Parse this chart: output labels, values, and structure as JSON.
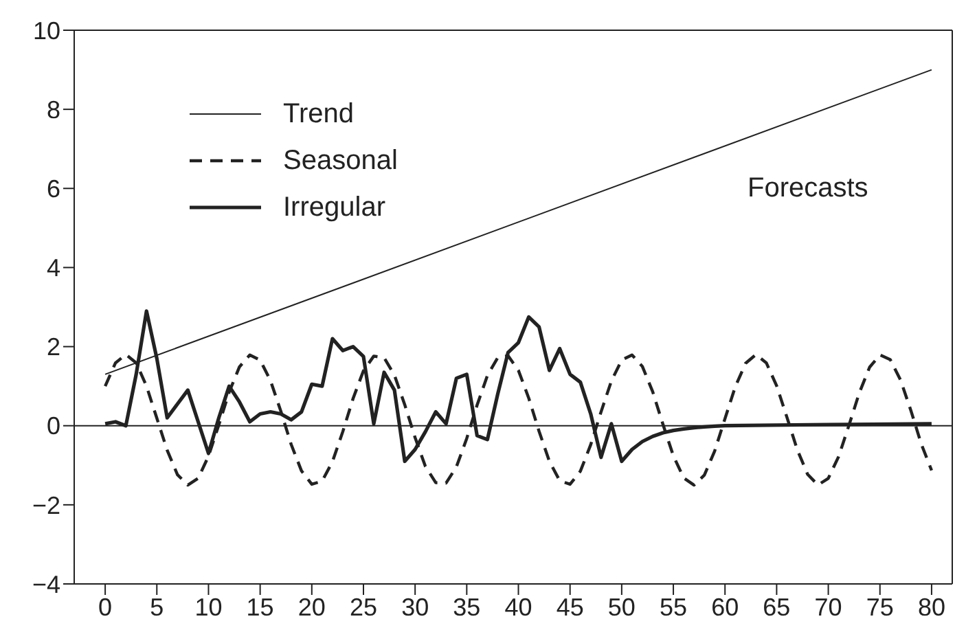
{
  "chart_data": {
    "type": "line",
    "annotations": [
      "Forecasts"
    ],
    "xlim": [
      -3,
      82
    ],
    "xticks": [
      0,
      5,
      10,
      15,
      20,
      25,
      30,
      35,
      40,
      45,
      50,
      55,
      60,
      65,
      70,
      75,
      80
    ],
    "ylim": [
      -4,
      10
    ],
    "yticks": [
      -4,
      -2,
      0,
      2,
      4,
      6,
      8,
      10
    ],
    "legend": "top left",
    "marker": "none",
    "ref_lines": [
      {
        "axis": "y",
        "value": 0,
        "color": "#222222"
      }
    ],
    "series": [
      {
        "name": "Trend",
        "color": "#222222",
        "line_style": "solid",
        "x": [
          0,
          80
        ],
        "values": [
          1.3,
          9.0
        ]
      },
      {
        "name": "Seasonal",
        "color": "#222222",
        "line_style": "dashed",
        "x": [
          0,
          1,
          2,
          3,
          4,
          5,
          6,
          7,
          8,
          9,
          10,
          11,
          12,
          13,
          14,
          15,
          16,
          17,
          18,
          19,
          20,
          21,
          22,
          23,
          24,
          25,
          26,
          27,
          28,
          29,
          30,
          31,
          32,
          33,
          34,
          35,
          36,
          37,
          38,
          39,
          40,
          41,
          42,
          43,
          44,
          45,
          46,
          47,
          48,
          49,
          50,
          51,
          52,
          53,
          54,
          55,
          56,
          57,
          58,
          59,
          60,
          61,
          62,
          63,
          64,
          65,
          66,
          67,
          68,
          69,
          70,
          71,
          72,
          73,
          74,
          75,
          76,
          77,
          78,
          79,
          80
        ],
        "values": [
          1.0,
          1.59,
          1.8,
          1.59,
          1.0,
          0.19,
          -0.62,
          -1.24,
          -1.5,
          -1.33,
          -0.77,
          0.02,
          0.85,
          1.49,
          1.79,
          1.66,
          1.14,
          0.37,
          -0.47,
          -1.14,
          -1.48,
          -1.4,
          -0.91,
          -0.15,
          0.69,
          1.39,
          1.76,
          1.72,
          1.28,
          0.53,
          -0.3,
          -1.03,
          -1.44,
          -1.45,
          -1.04,
          -0.32,
          0.52,
          1.27,
          1.72,
          1.77,
          1.4,
          0.7,
          -0.14,
          -0.9,
          -1.39,
          -1.48,
          -1.15,
          -0.48,
          0.35,
          1.13,
          1.66,
          1.79,
          1.5,
          0.86,
          0.03,
          -0.76,
          -1.32,
          -1.5,
          -1.25,
          -0.64,
          0.18,
          0.99,
          1.58,
          1.8,
          1.59,
          1.01,
          0.21,
          -0.61,
          -1.23,
          -1.5,
          -1.33,
          -0.78,
          0.01,
          0.83,
          1.48,
          1.79,
          1.67,
          1.15,
          0.38,
          -0.46,
          -1.13
        ]
      },
      {
        "name": "Irregular",
        "color": "#222222",
        "line_style": "solid",
        "x": [
          0,
          1,
          2,
          3,
          4,
          5,
          6,
          7,
          8,
          9,
          10,
          11,
          12,
          13,
          14,
          15,
          16,
          17,
          18,
          19,
          20,
          21,
          22,
          23,
          24,
          25,
          26,
          27,
          28,
          29,
          30,
          31,
          32,
          33,
          34,
          35,
          36,
          37,
          38,
          39,
          40,
          41,
          42,
          43,
          44,
          45,
          46,
          47,
          48,
          49,
          50,
          51,
          52,
          53,
          54,
          55,
          56,
          57,
          58,
          59,
          60,
          70,
          80
        ],
        "values": [
          0.05,
          0.1,
          0.0,
          1.3,
          2.9,
          1.7,
          0.2,
          0.55,
          0.9,
          0.1,
          -0.7,
          0.2,
          1.0,
          0.6,
          0.1,
          0.3,
          0.35,
          0.3,
          0.15,
          0.35,
          1.05,
          1.0,
          2.2,
          1.9,
          2.0,
          1.75,
          0.05,
          1.35,
          0.9,
          -0.9,
          -0.6,
          -0.15,
          0.35,
          0.05,
          1.2,
          1.3,
          -0.25,
          -0.35,
          0.8,
          1.85,
          2.1,
          2.75,
          2.5,
          1.4,
          1.95,
          1.3,
          1.1,
          0.3,
          -0.8,
          0.05,
          -0.9,
          -0.6,
          -0.4,
          -0.27,
          -0.18,
          -0.12,
          -0.08,
          -0.05,
          -0.03,
          -0.01,
          0.0,
          0.03,
          0.05
        ]
      }
    ]
  }
}
